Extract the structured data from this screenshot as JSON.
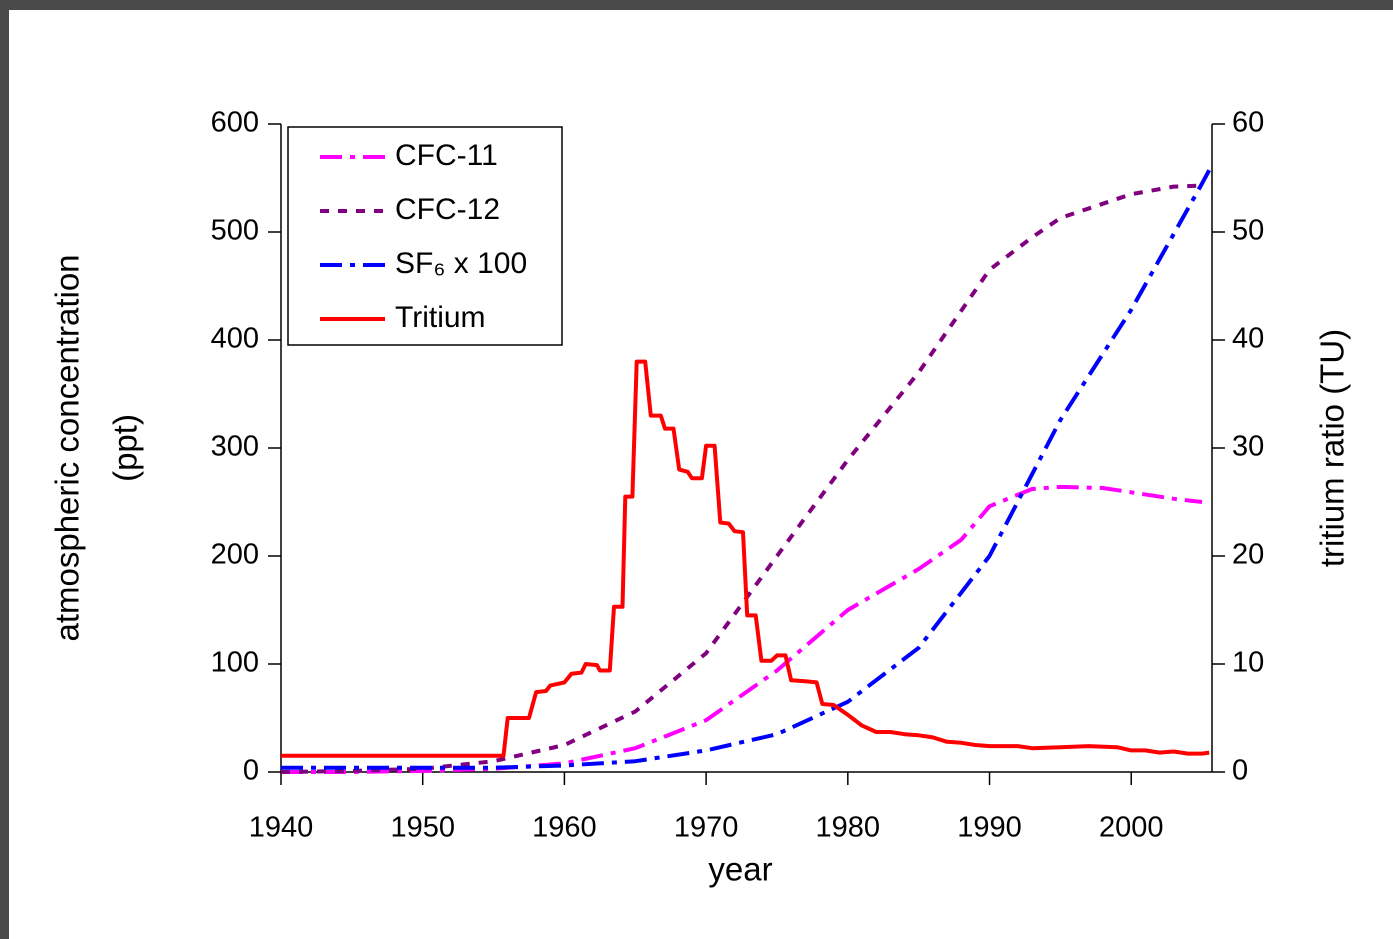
{
  "chart_data": {
    "type": "line",
    "xlabel": "year",
    "ylabel": [
      "atmospheric concentration",
      "(ppt)"
    ],
    "y2label": "tritium ratio (TU)",
    "xlim": [
      1940,
      2005.7
    ],
    "xticks": [
      1940,
      1950,
      1960,
      1970,
      1980,
      1990,
      2000
    ],
    "ylim": [
      0,
      600
    ],
    "yticks": [
      0,
      100,
      200,
      300,
      400,
      500,
      600
    ],
    "y2lim": [
      0,
      60
    ],
    "y2ticks": [
      0,
      10,
      20,
      30,
      40,
      50,
      60
    ],
    "legend": "upper left",
    "series": [
      {
        "name": "CFC-11",
        "color": "#ff00ff",
        "dash": "22,8,5,8",
        "x": [
          1940,
          1945,
          1950,
          1955,
          1960,
          1965,
          1970,
          1975,
          1980,
          1985,
          1988,
          1990,
          1993,
          1995,
          1998,
          2000,
          2003,
          2005
        ],
        "values": [
          0,
          0,
          1,
          3,
          8,
          22,
          48,
          94,
          150,
          188,
          215,
          246,
          262,
          264,
          263,
          259,
          253,
          250
        ]
      },
      {
        "name": "CFC-12",
        "color": "#800080",
        "dash": "9,9",
        "x": [
          1940,
          1945,
          1950,
          1955,
          1960,
          1965,
          1970,
          1975,
          1980,
          1985,
          1990,
          1993,
          1995,
          2000,
          2003,
          2005
        ],
        "values": [
          0,
          1,
          3,
          10,
          25,
          56,
          110,
          200,
          289,
          370,
          465,
          495,
          513,
          535,
          542,
          543
        ]
      },
      {
        "name": "SF₆ x 100",
        "color": "#0000ff",
        "dash": "22,8,5,8",
        "x": [
          1940,
          1945,
          1950,
          1955,
          1960,
          1965,
          1970,
          1975,
          1980,
          1985,
          1990,
          1995,
          2000,
          2005,
          2005.7
        ],
        "values": [
          4,
          4,
          4,
          4,
          6,
          10,
          20,
          35,
          65,
          115,
          200,
          326,
          428,
          545,
          562
        ]
      },
      {
        "name": "Tritium",
        "color": "#ff0000",
        "dash": "",
        "axis": "y2",
        "x": [
          1940,
          1955.7,
          1956,
          1957.5,
          1958,
          1958.7,
          1959,
          1960,
          1960.5,
          1961.2,
          1961.5,
          1962.3,
          1962.5,
          1963.2,
          1963.5,
          1964.1,
          1964.3,
          1964.8,
          1965.1,
          1965.7,
          1966.1,
          1966.8,
          1967.1,
          1967.7,
          1968.1,
          1968.7,
          1969,
          1969.7,
          1970,
          1970.6,
          1971,
          1971.6,
          1972,
          1972.6,
          1972.9,
          1973.5,
          1973.9,
          1974.6,
          1975,
          1975.6,
          1976,
          1977,
          1977.8,
          1978.2,
          1979,
          1980,
          1981,
          1982,
          1983,
          1984,
          1985,
          1986,
          1987,
          1988,
          1989,
          1990,
          1992,
          1993,
          1995,
          1997,
          1999,
          2000,
          2001,
          2002,
          2003,
          2004,
          2005,
          2005.5
        ],
        "values": [
          1.5,
          1.5,
          5,
          5,
          7.4,
          7.5,
          8,
          8.3,
          9.1,
          9.2,
          10,
          9.9,
          9.4,
          9.4,
          15.3,
          15.3,
          25.5,
          25.5,
          38,
          38,
          33,
          33,
          31.8,
          31.8,
          28,
          27.8,
          27.2,
          27.2,
          30.2,
          30.2,
          23.1,
          23,
          22.3,
          22.2,
          14.5,
          14.5,
          10.3,
          10.3,
          10.8,
          10.8,
          8.5,
          8.4,
          8.3,
          6.3,
          6.2,
          5.3,
          4.3,
          3.7,
          3.7,
          3.5,
          3.4,
          3.2,
          2.8,
          2.7,
          2.5,
          2.4,
          2.4,
          2.2,
          2.3,
          2.4,
          2.3,
          2,
          2,
          1.8,
          1.9,
          1.7,
          1.7,
          1.8
        ]
      }
    ]
  }
}
